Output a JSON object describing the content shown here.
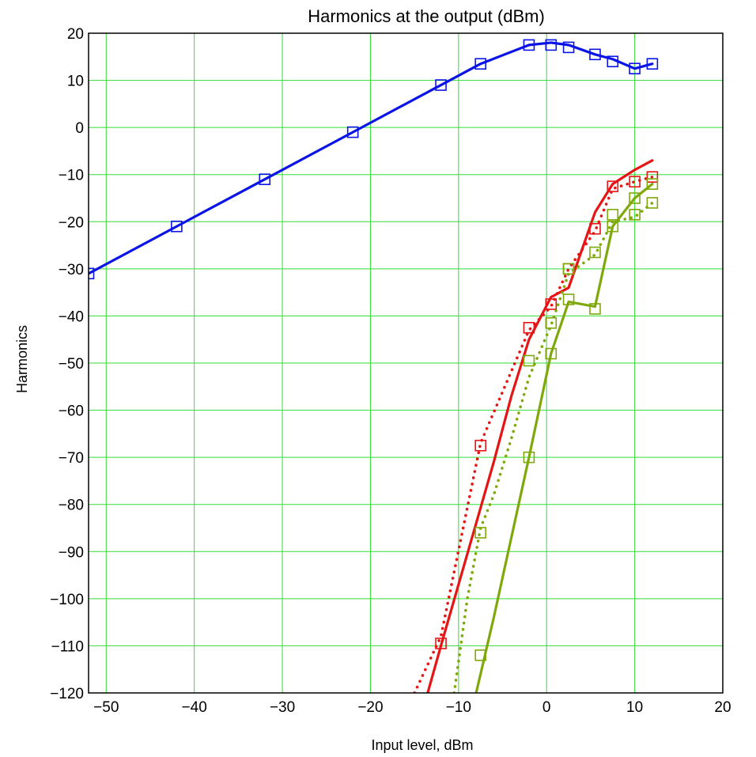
{
  "chart_data": {
    "type": "line",
    "title": "Harmonics at the output (dBm)",
    "xlabel": "Input level, dBm",
    "ylabel": "Harmonics",
    "xlim": [
      -52,
      20
    ],
    "ylim": [
      -120,
      20
    ],
    "xticks": [
      -50,
      -40,
      -30,
      -20,
      -10,
      0,
      10,
      20
    ],
    "yticks": [
      20,
      10,
      0,
      -10,
      -20,
      -30,
      -40,
      -50,
      -60,
      -70,
      -80,
      -90,
      -100,
      -110,
      -120
    ],
    "xtick_labels": [
      "−50",
      "−40",
      "−30",
      "−20",
      "−10",
      "0",
      "10",
      "20"
    ],
    "ytick_labels": [
      "20",
      "10",
      "0",
      "−10",
      "−20",
      "−30",
      "−40",
      "−50",
      "−60",
      "−70",
      "−80",
      "−90",
      "−100",
      "−110",
      "−120"
    ],
    "grid": true,
    "grid_color": "#33dd33",
    "series": [
      {
        "color": "#0a14e6",
        "style": "solid",
        "x": [
          -52,
          -42,
          -32,
          -22,
          -12,
          -7.5,
          -2,
          0.5,
          2.5,
          5.5,
          7.5,
          10,
          12
        ],
        "y": [
          -31,
          -21,
          -11,
          -1,
          9,
          13.5,
          17.5,
          18,
          17.5,
          15.5,
          14.5,
          12.5,
          13.5
        ]
      },
      {
        "color": "#0a14e6",
        "style": "markers",
        "marker": "square",
        "x": [
          -52,
          -42,
          -32,
          -22,
          -12,
          -7.5,
          -2,
          0.5,
          2.5,
          5.5,
          7.5,
          10,
          12
        ],
        "y": [
          -31,
          -21,
          -11,
          -1,
          9,
          13.5,
          17.5,
          17.5,
          17,
          15.5,
          14,
          12.5,
          13.5
        ]
      },
      {
        "color": "#e61414",
        "style": "solid",
        "x": [
          -13.5,
          -12,
          -10,
          -8,
          -6,
          -4,
          -2,
          0.5,
          2.5,
          5.5,
          7.5,
          10,
          12
        ],
        "y": [
          -120,
          -110,
          -97,
          -84,
          -71,
          -57,
          -45,
          -36,
          -34,
          -18,
          -12,
          -9,
          -7
        ]
      },
      {
        "color": "#e61414",
        "style": "dotted",
        "x": [
          -15,
          -12,
          -7.5,
          -2,
          0.5,
          2.5,
          5.5,
          7.5,
          10,
          12
        ],
        "y": [
          -120,
          -108,
          -67,
          -43,
          -38,
          -30,
          -22,
          -13,
          -11.5,
          -10.5
        ]
      },
      {
        "color": "#e61414",
        "style": "markers",
        "marker": "square",
        "x": [
          -12,
          -7.5,
          -2,
          0.5,
          2.5,
          5.5,
          7.5,
          10,
          12
        ],
        "y": [
          -109.5,
          -67.5,
          -42.5,
          -37.5,
          -30,
          -21.5,
          -12.5,
          -11.5,
          -10.5
        ]
      },
      {
        "color": "#7fa80a",
        "style": "solid",
        "x": [
          -8,
          -6,
          -4,
          -2,
          0.5,
          2.5,
          5.5,
          7.5,
          10,
          12
        ],
        "y": [
          -120,
          -104,
          -87,
          -70,
          -48,
          -37,
          -38,
          -21,
          -15,
          -12
        ]
      },
      {
        "color": "#7fa80a",
        "style": "dotted",
        "x": [
          -10.5,
          -9,
          -7.5,
          -6,
          -4,
          -2,
          0.5,
          2.5,
          5.5,
          7.5,
          10,
          12
        ],
        "y": [
          -120,
          -100,
          -85,
          -78,
          -66,
          -53,
          -42,
          -31,
          -27,
          -20,
          -19,
          -16
        ]
      },
      {
        "color": "#7fa80a",
        "style": "markers",
        "marker": "square",
        "x": [
          -7.5,
          -7.5,
          -2,
          -2,
          0.5,
          0.5,
          2.5,
          2.5,
          5.5,
          5.5,
          7.5,
          7.5,
          10,
          10,
          12,
          12
        ],
        "y": [
          -112,
          -86,
          -70,
          -49.5,
          -48,
          -41.5,
          -36.5,
          -30,
          -38.5,
          -26.5,
          -21,
          -18.5,
          -18.5,
          -15,
          -16,
          -12
        ]
      }
    ]
  }
}
